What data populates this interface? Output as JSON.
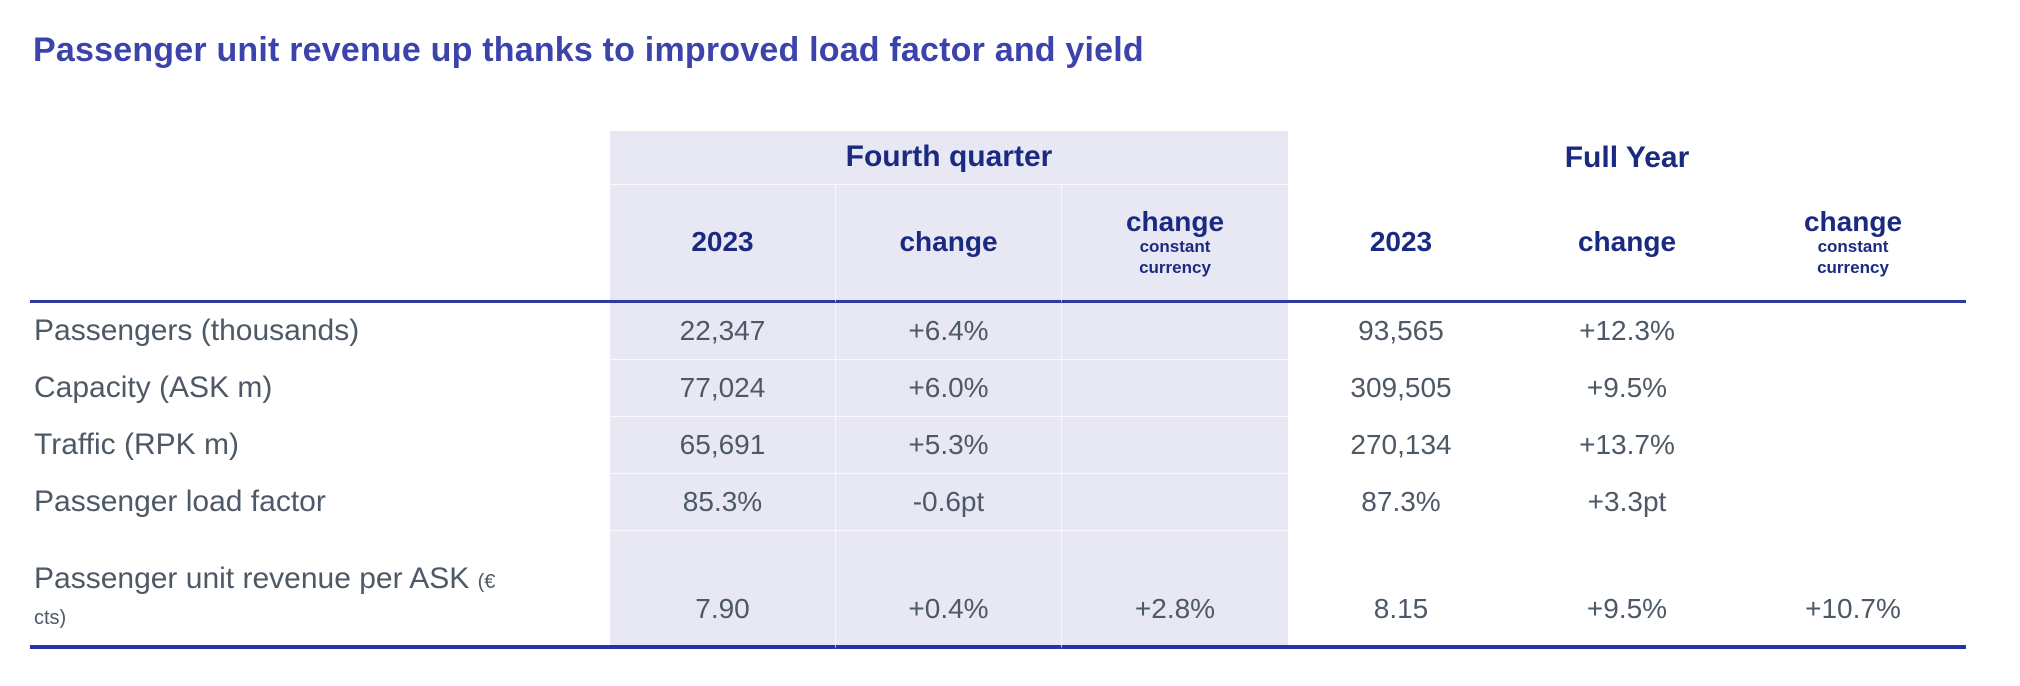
{
  "title": "Passenger unit revenue up thanks to improved load factor and yield",
  "colors": {
    "title_blue": "#3c43ab",
    "header_navy": "#1a2a80",
    "body_slate": "#4d5966",
    "rule_blue": "#2633a8",
    "shaded_band": "#e8e8f5"
  },
  "table": {
    "groups": [
      {
        "label": "Fourth quarter",
        "columns": [
          {
            "label": "2023",
            "sublabel": ""
          },
          {
            "label": "change",
            "sublabel": ""
          },
          {
            "label": "change",
            "sublabel": "constant currency"
          }
        ]
      },
      {
        "label": "Full Year",
        "columns": [
          {
            "label": "2023",
            "sublabel": ""
          },
          {
            "label": "change",
            "sublabel": ""
          },
          {
            "label": "change",
            "sublabel": "constant currency"
          }
        ]
      }
    ],
    "rows": [
      {
        "label": "Passengers (thousands)",
        "unit": "",
        "values": [
          "22,347",
          "+6.4%",
          "",
          "93,565",
          "+12.3%",
          ""
        ]
      },
      {
        "label": "Capacity (ASK m)",
        "unit": "",
        "values": [
          "77,024",
          "+6.0%",
          "",
          "309,505",
          "+9.5%",
          ""
        ]
      },
      {
        "label": "Traffic (RPK m)",
        "unit": "",
        "values": [
          "65,691",
          "+5.3%",
          "",
          "270,134",
          "+13.7%",
          ""
        ]
      },
      {
        "label": "Passenger load factor",
        "unit": "",
        "values": [
          "85.3%",
          "-0.6pt",
          "",
          "87.3%",
          "+3.3pt",
          ""
        ]
      },
      {
        "label": "Passenger unit revenue per ASK",
        "unit": "(€ cts)",
        "values": [
          "7.90",
          "+0.4%",
          "+2.8%",
          "8.15",
          "+9.5%",
          "+10.7%"
        ]
      }
    ]
  }
}
